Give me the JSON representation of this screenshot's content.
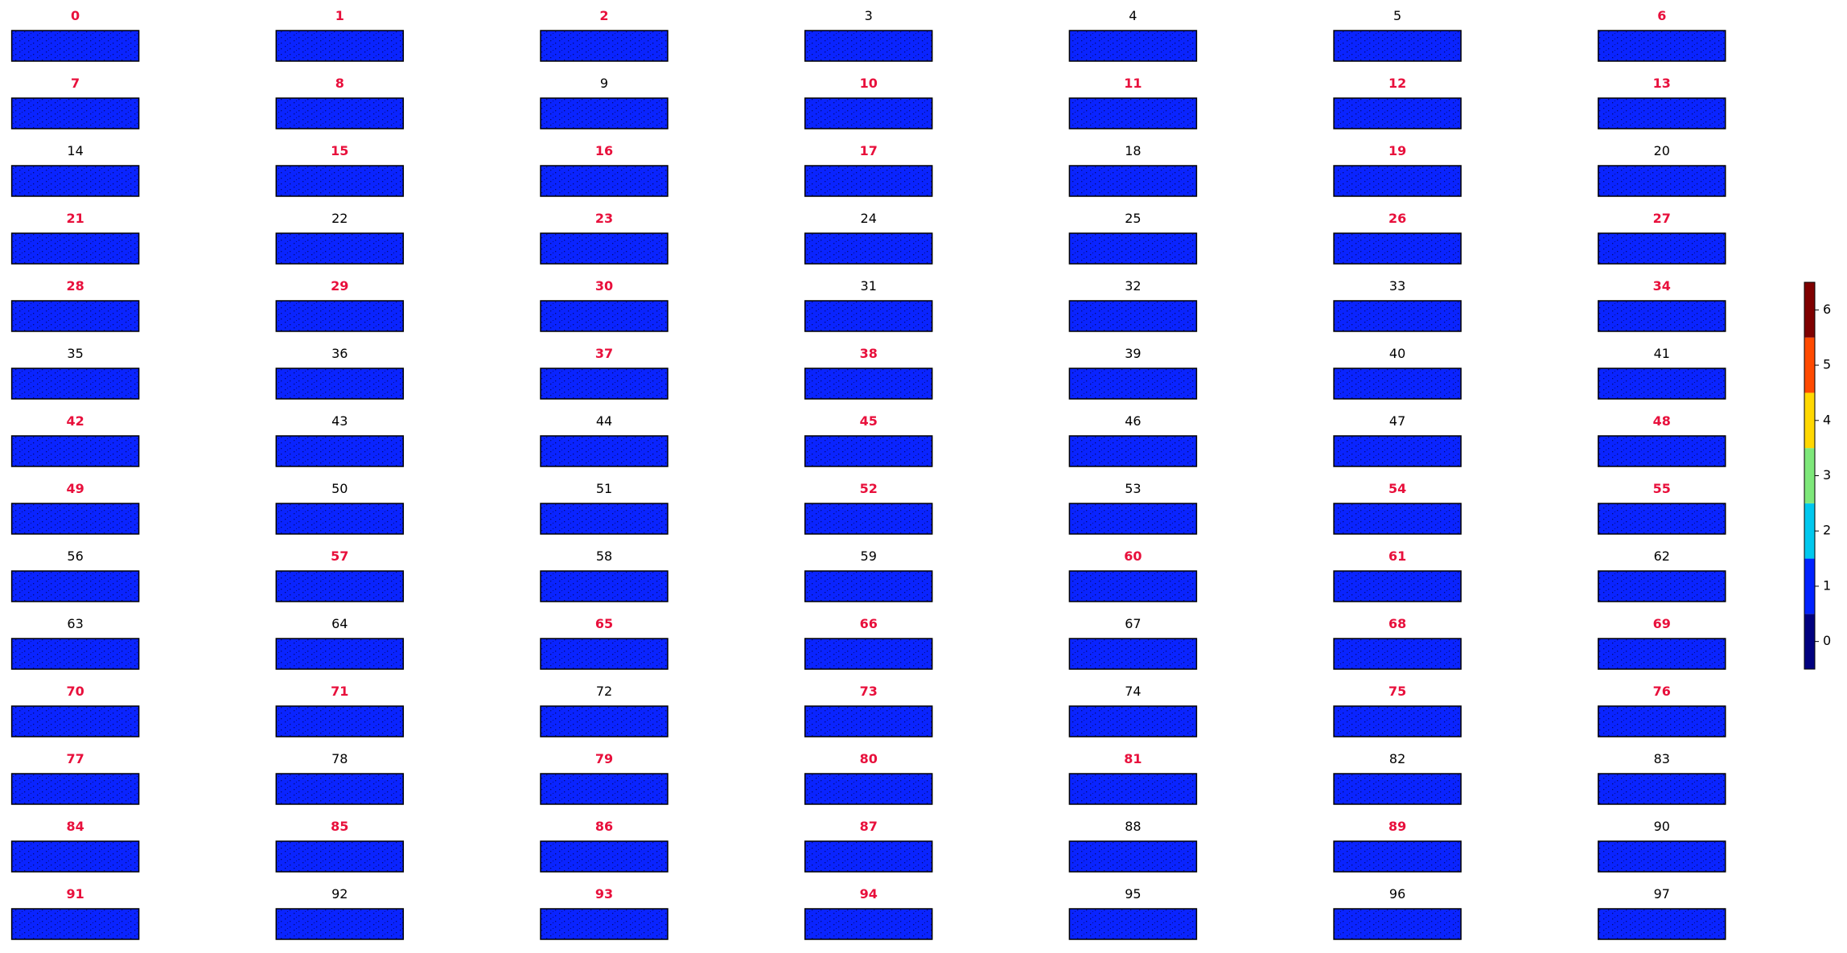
{
  "panels": [
    {
      "title": "0",
      "highlight": true
    },
    {
      "title": "1",
      "highlight": true
    },
    {
      "title": "2",
      "highlight": true
    },
    {
      "title": "3",
      "highlight": false
    },
    {
      "title": "4",
      "highlight": false
    },
    {
      "title": "5",
      "highlight": false
    },
    {
      "title": "6",
      "highlight": true
    },
    {
      "title": "7",
      "highlight": true
    },
    {
      "title": "8",
      "highlight": true
    },
    {
      "title": "9",
      "highlight": false
    },
    {
      "title": "10",
      "highlight": true
    },
    {
      "title": "11",
      "highlight": true
    },
    {
      "title": "12",
      "highlight": true
    },
    {
      "title": "13",
      "highlight": true
    },
    {
      "title": "14",
      "highlight": false
    },
    {
      "title": "15",
      "highlight": true
    },
    {
      "title": "16",
      "highlight": true
    },
    {
      "title": "17",
      "highlight": true
    },
    {
      "title": "18",
      "highlight": false
    },
    {
      "title": "19",
      "highlight": true
    },
    {
      "title": "20",
      "highlight": false
    },
    {
      "title": "21",
      "highlight": true
    },
    {
      "title": "22",
      "highlight": false
    },
    {
      "title": "23",
      "highlight": true
    },
    {
      "title": "24",
      "highlight": false
    },
    {
      "title": "25",
      "highlight": false
    },
    {
      "title": "26",
      "highlight": true
    },
    {
      "title": "27",
      "highlight": true
    },
    {
      "title": "28",
      "highlight": true
    },
    {
      "title": "29",
      "highlight": true
    },
    {
      "title": "30",
      "highlight": true
    },
    {
      "title": "31",
      "highlight": false
    },
    {
      "title": "32",
      "highlight": false
    },
    {
      "title": "33",
      "highlight": false
    },
    {
      "title": "34",
      "highlight": true
    },
    {
      "title": "35",
      "highlight": false
    },
    {
      "title": "36",
      "highlight": false
    },
    {
      "title": "37",
      "highlight": true
    },
    {
      "title": "38",
      "highlight": true
    },
    {
      "title": "39",
      "highlight": false
    },
    {
      "title": "40",
      "highlight": false
    },
    {
      "title": "41",
      "highlight": false
    },
    {
      "title": "42",
      "highlight": true
    },
    {
      "title": "43",
      "highlight": false
    },
    {
      "title": "44",
      "highlight": false
    },
    {
      "title": "45",
      "highlight": true
    },
    {
      "title": "46",
      "highlight": false
    },
    {
      "title": "47",
      "highlight": false
    },
    {
      "title": "48",
      "highlight": true
    },
    {
      "title": "49",
      "highlight": true
    },
    {
      "title": "50",
      "highlight": false
    },
    {
      "title": "51",
      "highlight": false
    },
    {
      "title": "52",
      "highlight": true
    },
    {
      "title": "53",
      "highlight": false
    },
    {
      "title": "54",
      "highlight": true
    },
    {
      "title": "55",
      "highlight": true
    },
    {
      "title": "56",
      "highlight": false
    },
    {
      "title": "57",
      "highlight": true
    },
    {
      "title": "58",
      "highlight": false
    },
    {
      "title": "59",
      "highlight": false
    },
    {
      "title": "60",
      "highlight": true
    },
    {
      "title": "61",
      "highlight": true
    },
    {
      "title": "62",
      "highlight": false
    },
    {
      "title": "63",
      "highlight": false
    },
    {
      "title": "64",
      "highlight": false
    },
    {
      "title": "65",
      "highlight": true
    },
    {
      "title": "66",
      "highlight": true
    },
    {
      "title": "67",
      "highlight": false
    },
    {
      "title": "68",
      "highlight": true
    },
    {
      "title": "69",
      "highlight": true
    },
    {
      "title": "70",
      "highlight": true
    },
    {
      "title": "71",
      "highlight": true
    },
    {
      "title": "72",
      "highlight": false
    },
    {
      "title": "73",
      "highlight": true
    },
    {
      "title": "74",
      "highlight": false
    },
    {
      "title": "75",
      "highlight": true
    },
    {
      "title": "76",
      "highlight": true
    },
    {
      "title": "77",
      "highlight": true
    },
    {
      "title": "78",
      "highlight": false
    },
    {
      "title": "79",
      "highlight": true
    },
    {
      "title": "80",
      "highlight": true
    },
    {
      "title": "81",
      "highlight": true
    },
    {
      "title": "82",
      "highlight": false
    },
    {
      "title": "83",
      "highlight": false
    },
    {
      "title": "84",
      "highlight": true
    },
    {
      "title": "85",
      "highlight": true
    },
    {
      "title": "86",
      "highlight": true
    },
    {
      "title": "87",
      "highlight": true
    },
    {
      "title": "88",
      "highlight": false
    },
    {
      "title": "89",
      "highlight": true
    },
    {
      "title": "90",
      "highlight": false
    },
    {
      "title": "91",
      "highlight": true
    },
    {
      "title": "92",
      "highlight": false
    },
    {
      "title": "93",
      "highlight": true
    },
    {
      "title": "94",
      "highlight": true
    },
    {
      "title": "95",
      "highlight": false
    },
    {
      "title": "96",
      "highlight": false
    },
    {
      "title": "97",
      "highlight": false
    }
  ],
  "highlight_color": "#e8103c",
  "panel_color": "#0a24ff",
  "colorbar": {
    "type": "colorbar",
    "clim": [
      -0.5,
      6.5
    ],
    "ticks": [
      0,
      1,
      2,
      3,
      4,
      5,
      6
    ],
    "colors": [
      "#00007f",
      "#0022ff",
      "#00c8ee",
      "#7ee87a",
      "#ffd800",
      "#ff4a00",
      "#7f0000"
    ]
  }
}
